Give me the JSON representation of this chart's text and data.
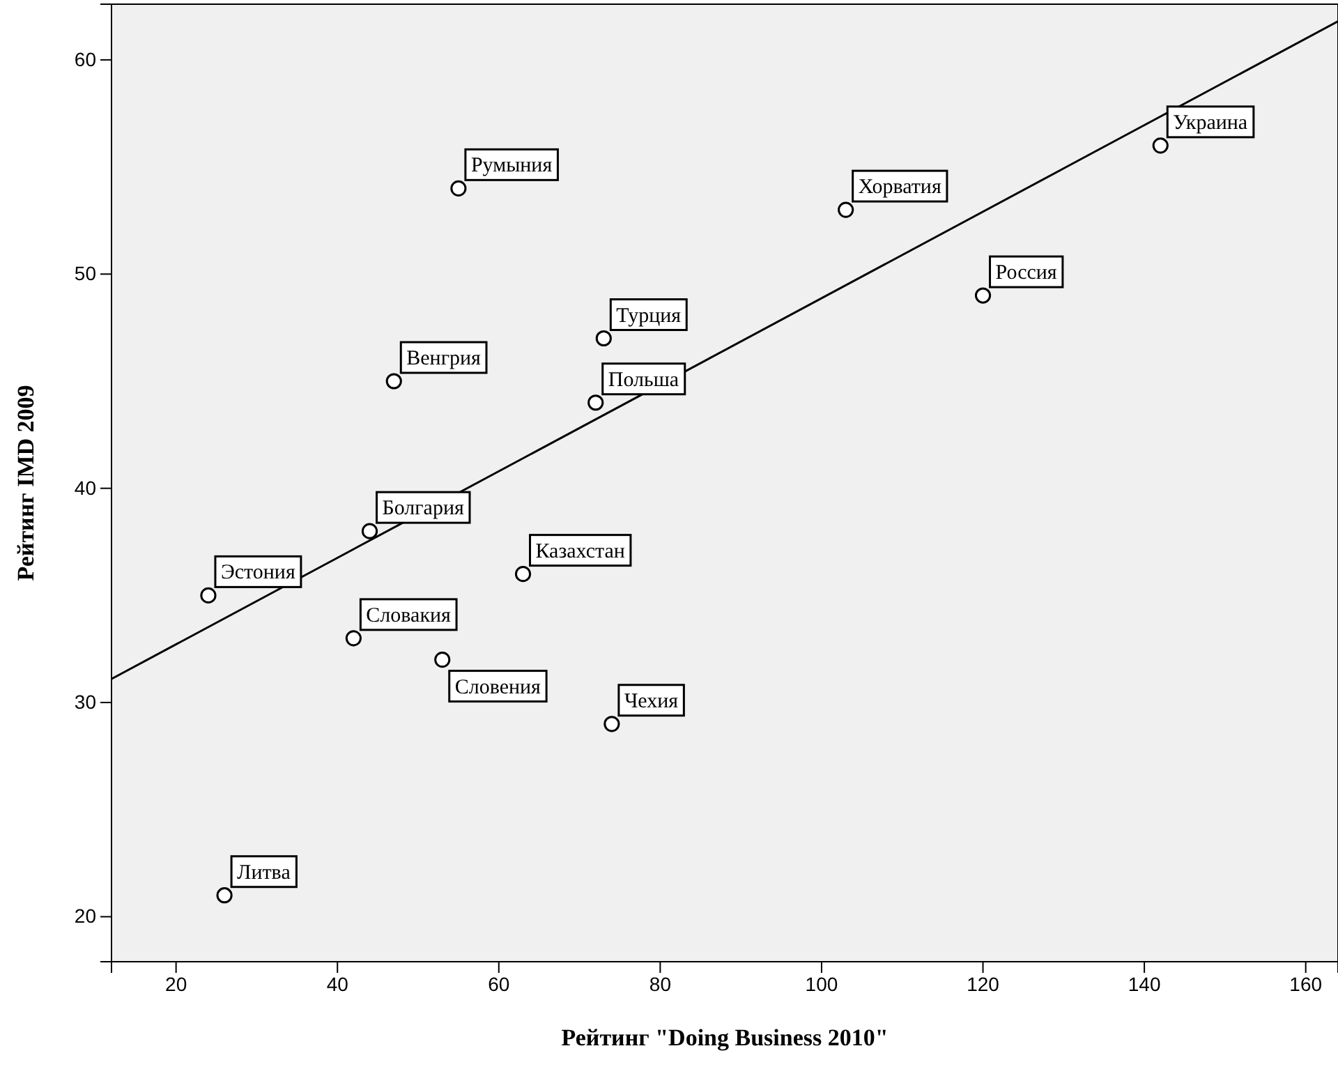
{
  "chart_data": {
    "type": "scatter",
    "xlabel": "Рейтинг \"Doing Business 2010\"",
    "ylabel": "Рейтинг IMD 2009",
    "xlim": [
      12,
      164
    ],
    "ylim": [
      17.9,
      62.6
    ],
    "xticks": [
      20,
      40,
      60,
      80,
      100,
      120,
      140,
      160
    ],
    "yticks": [
      20,
      30,
      40,
      50,
      60
    ],
    "grid": false,
    "series": [
      {
        "color": "#000000",
        "marker": "circle",
        "x": [
          142,
          103,
          120,
          55,
          73,
          72,
          47,
          44,
          63,
          24,
          42,
          53,
          74,
          26
        ],
        "values": [
          56,
          53,
          49,
          54,
          47,
          44,
          45,
          38,
          36,
          35,
          33,
          32,
          29,
          21
        ]
      },
      {
        "type": "line",
        "color": "#000000",
        "x": [
          12,
          164
        ],
        "values": [
          31.1,
          61.8
        ]
      }
    ],
    "annotations": [
      {
        "text": "Украина",
        "x": 142,
        "y": 56
      },
      {
        "text": "Хорватия",
        "x": 103,
        "y": 53
      },
      {
        "text": "Россия",
        "x": 120,
        "y": 49
      },
      {
        "text": "Румыния",
        "x": 55,
        "y": 54
      },
      {
        "text": "Турция",
        "x": 73,
        "y": 47
      },
      {
        "text": "Польша",
        "x": 72,
        "y": 44
      },
      {
        "text": "Венгрия",
        "x": 47,
        "y": 45
      },
      {
        "text": "Болгария",
        "x": 44,
        "y": 38
      },
      {
        "text": "Казахстан",
        "x": 63,
        "y": 36
      },
      {
        "text": "Эстония",
        "x": 24,
        "y": 35
      },
      {
        "text": "Словакия",
        "x": 42,
        "y": 33
      },
      {
        "text": "Словения",
        "x": 53,
        "y": 32
      },
      {
        "text": "Чехия",
        "x": 74,
        "y": 29
      },
      {
        "text": "Литва",
        "x": 26,
        "y": 21
      }
    ]
  }
}
